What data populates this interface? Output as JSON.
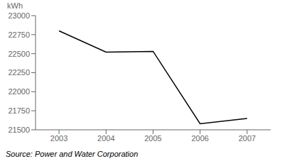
{
  "chart_data": {
    "type": "line",
    "x": [
      2003,
      2004,
      2005,
      2006,
      2007
    ],
    "values": [
      22800,
      22520,
      22530,
      21580,
      21650
    ],
    "ylabel": "kWh",
    "xlim": [
      2002.5,
      2007.5
    ],
    "ylim": [
      21500,
      23000
    ],
    "xticks": [
      2003,
      2004,
      2005,
      2006,
      2007
    ],
    "yticks": [
      21500,
      21750,
      22000,
      22250,
      22500,
      22750,
      23000
    ],
    "color": "#000000",
    "grid": false,
    "annotations": [
      "Source: Power and Water Corporation"
    ]
  }
}
